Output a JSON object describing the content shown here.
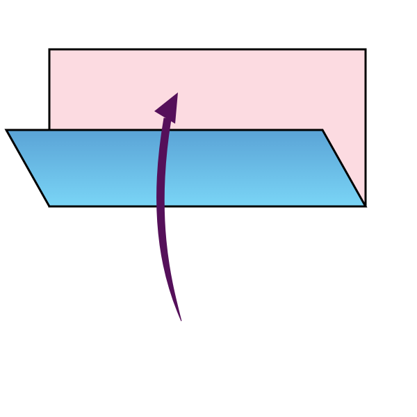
{
  "diagram": {
    "description_visible_text": "",
    "colors": {
      "background": "#ffffff",
      "back_panel_fill": "#fcdbe1",
      "panel_stroke": "#000000",
      "front_panel_fill_top": "#5aa3d6",
      "front_panel_fill_bottom": "#7ad5f6",
      "arrow": "#55105a"
    },
    "elements": [
      {
        "name": "back-panel",
        "shape": "rectangle"
      },
      {
        "name": "front-panel",
        "shape": "parallelogram"
      },
      {
        "name": "fold-up-arrow",
        "shape": "curved-arrow"
      }
    ]
  }
}
